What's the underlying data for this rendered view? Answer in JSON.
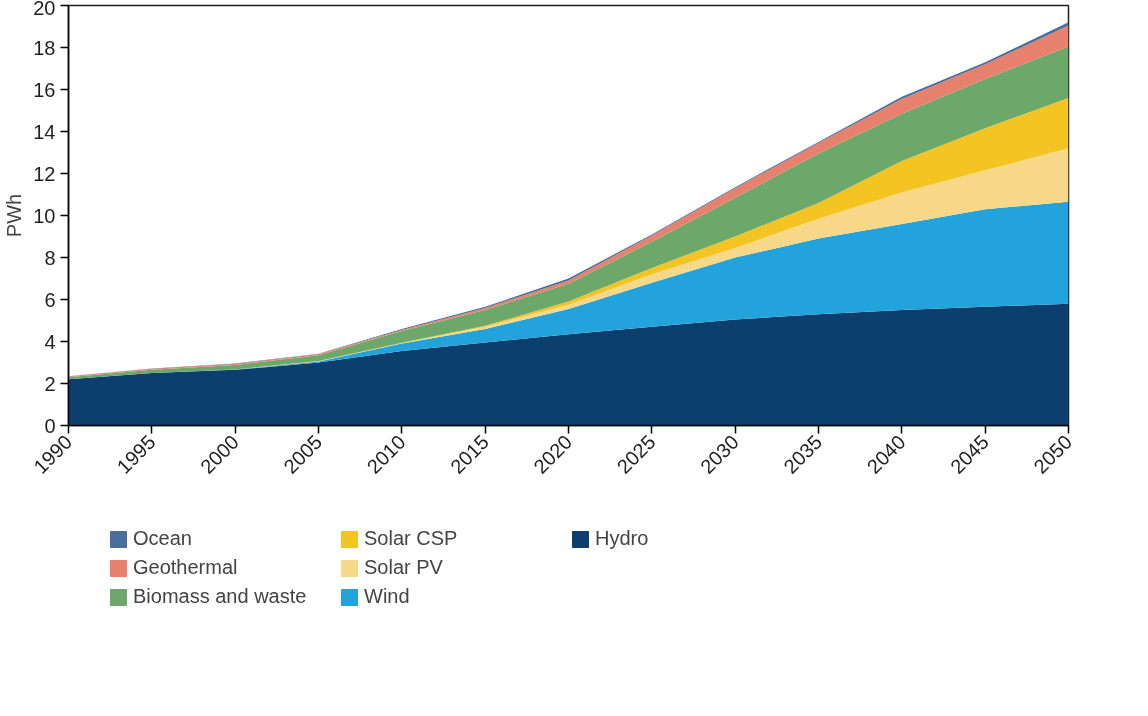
{
  "chart_data": {
    "type": "area",
    "stacked": true,
    "ylabel": "PWh",
    "x": [
      1990,
      1995,
      2000,
      2005,
      2010,
      2015,
      2020,
      2025,
      2030,
      2035,
      2040,
      2045,
      2050
    ],
    "xlim": [
      1990,
      2050
    ],
    "xticks": [
      1990,
      1995,
      2000,
      2005,
      2010,
      2015,
      2020,
      2025,
      2030,
      2035,
      2040,
      2045,
      2050
    ],
    "ylim": [
      0,
      20
    ],
    "yticks": [
      0,
      2,
      4,
      6,
      8,
      10,
      12,
      14,
      16,
      18,
      20
    ],
    "grid": false,
    "legend": "bottom",
    "series": [
      {
        "name": "Hydro",
        "color": "#0d3f6e",
        "values": [
          2.2,
          2.5,
          2.65,
          3.0,
          3.55,
          3.95,
          4.35,
          4.7,
          5.05,
          5.3,
          5.5,
          5.65,
          5.8
        ]
      },
      {
        "name": "Wind",
        "color": "#23a3dc",
        "values": [
          0,
          0,
          0.02,
          0.05,
          0.35,
          0.65,
          1.2,
          2.1,
          2.95,
          3.6,
          4.1,
          4.65,
          4.85
        ]
      },
      {
        "name": "Solar PV",
        "color": "#f7d888",
        "values": [
          0,
          0,
          0,
          0.01,
          0.02,
          0.1,
          0.2,
          0.4,
          0.45,
          0.95,
          1.5,
          1.85,
          2.55
        ]
      },
      {
        "name": "Solar CSP",
        "color": "#f4c522",
        "values": [
          0,
          0,
          0,
          0.01,
          0.02,
          0.05,
          0.15,
          0.3,
          0.55,
          0.75,
          1.5,
          2.0,
          2.4
        ]
      },
      {
        "name": "Biomass and waste",
        "color": "#6ca86a",
        "values": [
          0.1,
          0.15,
          0.21,
          0.28,
          0.56,
          0.75,
          0.85,
          1.25,
          1.85,
          2.35,
          2.25,
          2.35,
          2.45
        ]
      },
      {
        "name": "Geothermal",
        "color": "#e8806e",
        "values": [
          0.03,
          0.05,
          0.05,
          0.05,
          0.05,
          0.1,
          0.15,
          0.3,
          0.45,
          0.5,
          0.7,
          0.7,
          1.0
        ]
      },
      {
        "name": "Ocean",
        "color": "#4a6f9a",
        "values": [
          0.02,
          0.02,
          0.02,
          0.02,
          0.05,
          0.05,
          0.1,
          0.05,
          0.05,
          0.05,
          0.1,
          0.1,
          0.15
        ]
      }
    ]
  }
}
